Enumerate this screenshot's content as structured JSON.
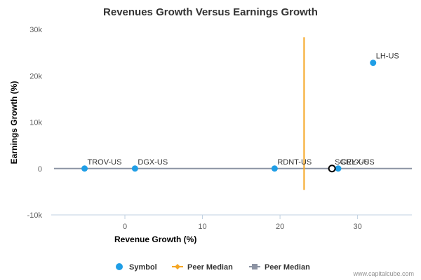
{
  "chart_data": {
    "type": "scatter",
    "title": "Revenues Growth Versus Earnings Growth",
    "xlabel": "Revenue Growth (%)",
    "ylabel": "Earnings Growth (%)",
    "xlim": [
      -9.5,
      37
    ],
    "ylim": [
      -10000,
      30000
    ],
    "x_ticks": [
      0,
      10,
      20,
      30
    ],
    "x_tick_labels": [
      "0",
      "10",
      "20",
      "30"
    ],
    "y_ticks": [
      -10000,
      0,
      10000,
      20000,
      30000
    ],
    "y_tick_labels": [
      "-10k",
      "0",
      "10k",
      "20k",
      "30k"
    ],
    "points": [
      {
        "label": "TROV-US",
        "x": -5.2,
        "y": 0
      },
      {
        "label": "DGX-US",
        "x": 1.3,
        "y": 0
      },
      {
        "label": "RDNT-US",
        "x": 19.3,
        "y": 0
      },
      {
        "label": "CELX-US",
        "x": 27.5,
        "y": 0
      },
      {
        "label": "LH-US",
        "x": 32.0,
        "y": 22800
      }
    ],
    "highlight": {
      "label": "SGRY-US",
      "x": 26.7,
      "y": 0
    },
    "peer_median_x": {
      "value": 23.1,
      "y_range": [
        -4600,
        28300
      ]
    },
    "peer_median_y": {
      "value": 0
    },
    "legend": {
      "placement": "bottom",
      "items": [
        {
          "label": "Symbol",
          "color": "#1f9ee6",
          "marker": "circle"
        },
        {
          "label": "Peer Median",
          "color": "#f5a623",
          "marker": "diamond"
        },
        {
          "label": "Peer Median",
          "color": "#8c93a3",
          "marker": "square"
        }
      ]
    },
    "colors": {
      "point": "#1f9ee6",
      "peer_median_x": "#f5a623",
      "peer_median_y": "#8c93a3",
      "highlight_stroke": "#000000"
    },
    "grid": false
  },
  "credit": "www.capitalcube.com"
}
